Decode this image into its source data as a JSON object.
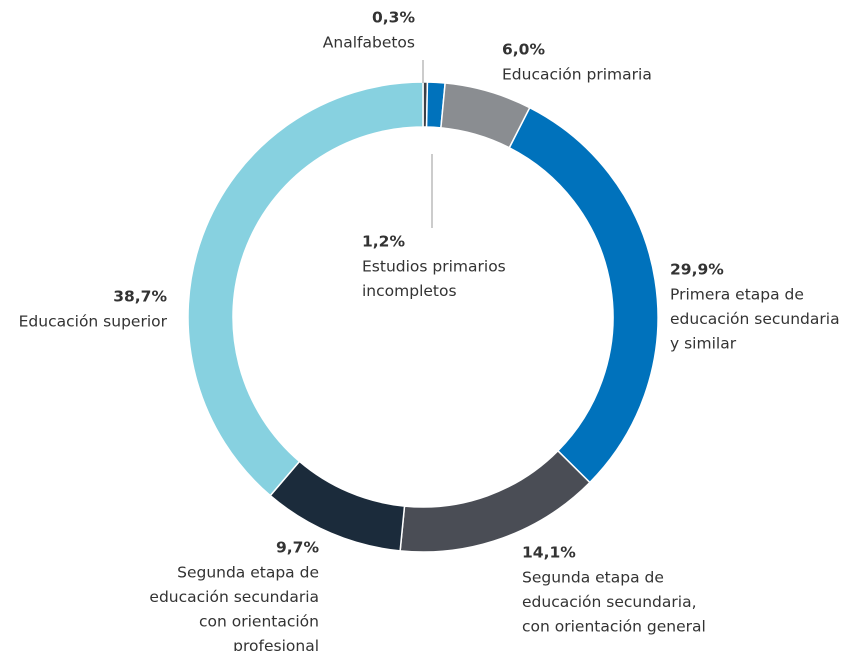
{
  "chart_data": {
    "type": "pie",
    "donut": true,
    "categories": [
      [
        "Analfabetos"
      ],
      [
        "Estudios primarios",
        "incompletos"
      ],
      [
        "Educación primaria"
      ],
      [
        "Primera etapa de",
        "educación secundaria",
        "y similar"
      ],
      [
        "Segunda etapa de",
        "educación secundaria,",
        "con orientación general"
      ],
      [
        "Segunda etapa de",
        "educación secundaria",
        "con orientación",
        "profesional"
      ],
      [
        "Educación superior"
      ]
    ],
    "values": [
      0.3,
      1.2,
      6.0,
      29.9,
      14.1,
      9.7,
      38.7
    ],
    "value_labels": [
      "0,3%",
      "1,2%",
      "6,0%",
      "29,9%",
      "14,1%",
      "9,7%",
      "38,7%"
    ],
    "colors": [
      "#3b4048",
      "#0072bc",
      "#8a8d91",
      "#0072bc",
      "#4a4d55",
      "#1b2b3b",
      "#87d1e0"
    ]
  }
}
